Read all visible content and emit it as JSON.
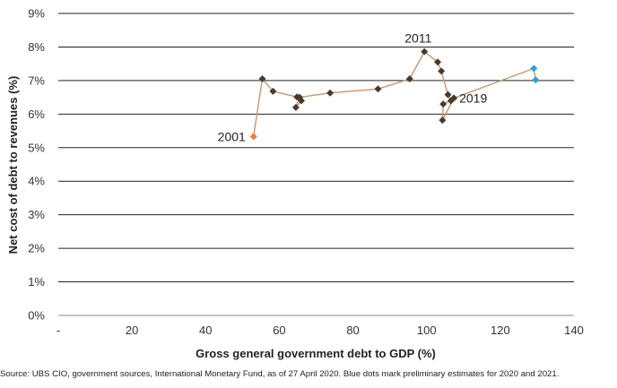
{
  "chart_data": {
    "type": "scatter",
    "xlabel": "Gross general government debt to GDP (%)",
    "ylabel": "Net cost of debt to revenues (%)",
    "xlim": [
      0,
      140
    ],
    "ylim": [
      0,
      9
    ],
    "x_ticks": [
      "-",
      "20",
      "40",
      "60",
      "80",
      "100",
      "120",
      "140"
    ],
    "x_tick_values": [
      0,
      20,
      40,
      60,
      80,
      100,
      120,
      140
    ],
    "y_ticks": [
      "0%",
      "1%",
      "2%",
      "3%",
      "4%",
      "5%",
      "6%",
      "7%",
      "8%",
      "9%"
    ],
    "y_tick_values": [
      0,
      1,
      2,
      3,
      4,
      5,
      6,
      7,
      8,
      9
    ],
    "grid": "horizontal",
    "line_color": "#c8956e",
    "marker_color": "#4a3a2e",
    "start_color": "#f07a3c",
    "estimate_color": "#2e9fdc",
    "points": [
      {
        "x": 53.0,
        "y": 5.33,
        "kind": "start"
      },
      {
        "x": 55.4,
        "y": 7.05,
        "kind": "actual"
      },
      {
        "x": 58.3,
        "y": 6.68,
        "kind": "actual"
      },
      {
        "x": 64.8,
        "y": 6.51,
        "kind": "actual"
      },
      {
        "x": 66.0,
        "y": 6.4,
        "kind": "actual"
      },
      {
        "x": 64.5,
        "y": 6.2,
        "kind": "actual"
      },
      {
        "x": 65.5,
        "y": 6.5,
        "kind": "actual"
      },
      {
        "x": 73.8,
        "y": 6.63,
        "kind": "actual"
      },
      {
        "x": 86.8,
        "y": 6.75,
        "kind": "actual"
      },
      {
        "x": 95.4,
        "y": 7.05,
        "kind": "actual"
      },
      {
        "x": 99.4,
        "y": 7.86,
        "kind": "actual"
      },
      {
        "x": 103.0,
        "y": 7.55,
        "kind": "actual"
      },
      {
        "x": 104.0,
        "y": 7.28,
        "kind": "actual"
      },
      {
        "x": 105.8,
        "y": 6.58,
        "kind": "actual"
      },
      {
        "x": 106.6,
        "y": 6.4,
        "kind": "actual"
      },
      {
        "x": 104.5,
        "y": 6.3,
        "kind": "actual"
      },
      {
        "x": 104.3,
        "y": 5.82,
        "kind": "actual"
      },
      {
        "x": 107.4,
        "y": 6.48,
        "kind": "actual"
      },
      {
        "x": 129.1,
        "y": 7.36,
        "kind": "estimate"
      },
      {
        "x": 129.6,
        "y": 7.02,
        "kind": "estimate"
      }
    ],
    "annotations": [
      {
        "text": "2001",
        "point_index": 0
      },
      {
        "text": "2011",
        "point_index": 10
      },
      {
        "text": "2019",
        "point_index": 17
      }
    ]
  },
  "source_note": "Source: UBS CIO, government sources, International Monetary Fund, as of 27  April 2020. Blue dots mark preliminary estimates for 2020 and 2021."
}
